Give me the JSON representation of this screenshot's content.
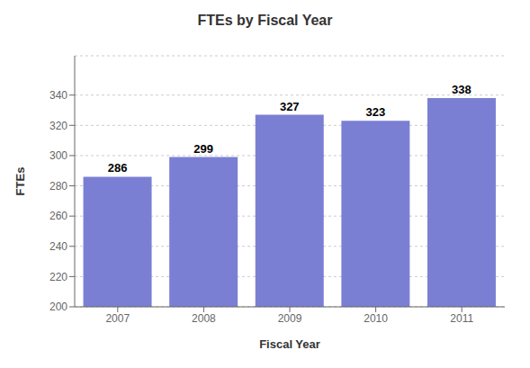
{
  "chart_data": {
    "type": "bar",
    "title": "FTEs by Fiscal Year",
    "xlabel": "Fiscal Year",
    "ylabel": "FTEs",
    "categories": [
      "2007",
      "2008",
      "2009",
      "2010",
      "2011"
    ],
    "values": [
      286,
      299,
      327,
      323,
      338
    ],
    "color": "#7B7FD4",
    "ylim": [
      200,
      366
    ],
    "yticks": [
      200,
      220,
      240,
      260,
      280,
      300,
      320,
      340
    ],
    "grid": true,
    "data_labels": true
  }
}
